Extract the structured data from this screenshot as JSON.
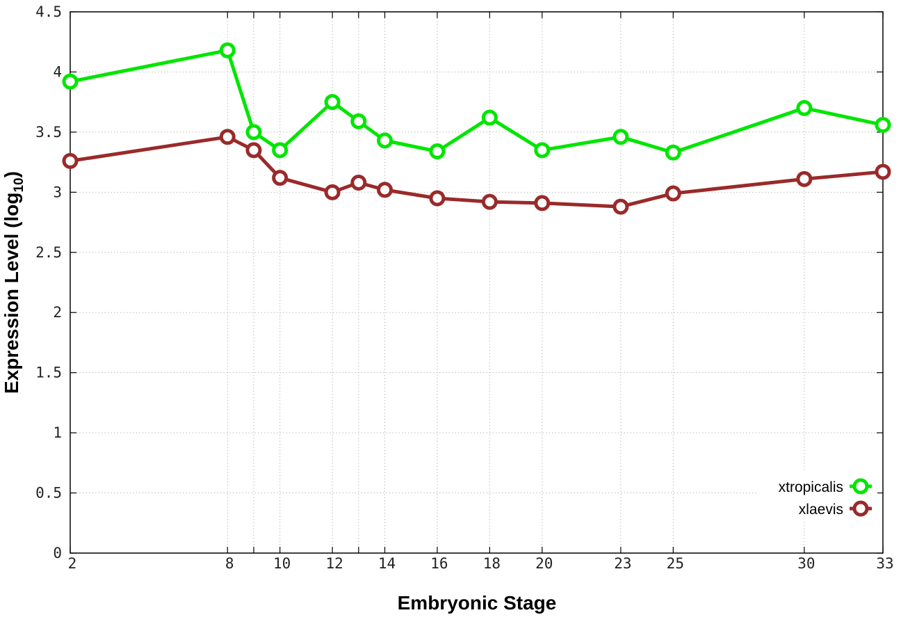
{
  "chart_data": {
    "type": "line",
    "xlabel": "Embryonic Stage",
    "ylabel": "Expression Level (log",
    "ylabel_subscript": "10",
    "ylabel_close": ")",
    "x": [
      2,
      8,
      9,
      10,
      12,
      13,
      14,
      16,
      18,
      20,
      23,
      25,
      30,
      33
    ],
    "x_tick_labels": [
      "2",
      "8",
      "10",
      "12",
      "14",
      "16",
      "18",
      "20",
      "23",
      "25",
      "30",
      "33"
    ],
    "y_tick_labels": [
      "0",
      "0.5",
      "1",
      "1.5",
      "2",
      "2.5",
      "3",
      "3.5",
      "4",
      "4.5"
    ],
    "ylim": [
      0,
      4.5
    ],
    "xlim": [
      2,
      33
    ],
    "grid": true,
    "legend_position": "bottom-right",
    "series": [
      {
        "name": "xtropicalis",
        "color": "#00e600",
        "values": [
          3.92,
          4.18,
          3.5,
          3.35,
          3.75,
          3.59,
          3.43,
          3.34,
          3.62,
          3.35,
          3.46,
          3.33,
          3.7,
          3.56
        ]
      },
      {
        "name": "xlaevis",
        "color": "#9a2a2a",
        "values": [
          3.26,
          3.46,
          3.35,
          3.12,
          3.0,
          3.08,
          3.02,
          2.95,
          2.92,
          2.91,
          2.88,
          2.99,
          3.11,
          3.17
        ]
      }
    ]
  }
}
